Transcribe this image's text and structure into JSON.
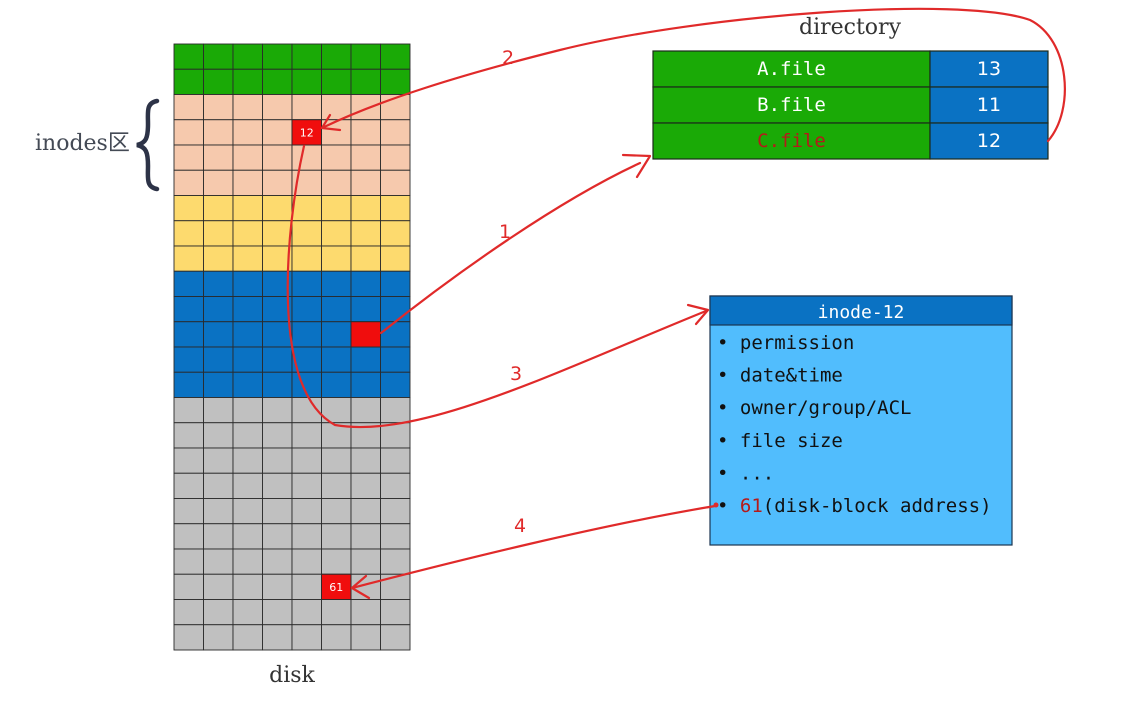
{
  "labels": {
    "inodes_region": "inodes区",
    "disk": "disk",
    "directory": "directory"
  },
  "disk": {
    "rows": 24,
    "cols": 8,
    "regions": [
      {
        "name": "disk-region-top",
        "rows": 2,
        "color": "#1aaa06"
      },
      {
        "name": "disk-region-inodes",
        "rows": 4,
        "color": "#f6c9ad"
      },
      {
        "name": "disk-region-yellow",
        "rows": 3,
        "color": "#fdda6e"
      },
      {
        "name": "disk-region-blue",
        "rows": 5,
        "color": "#0a72c3"
      },
      {
        "name": "disk-region-data",
        "rows": 10,
        "color": "#c0c0c0"
      }
    ],
    "marked_blocks": [
      {
        "name": "inode-block-12",
        "label": "12",
        "row": 3,
        "col": 4
      },
      {
        "name": "directory-block",
        "label": "",
        "row": 11,
        "col": 6
      },
      {
        "name": "data-block-61",
        "label": "61",
        "row": 21,
        "col": 5
      }
    ],
    "marked_color": "#f00d0d"
  },
  "directory": {
    "rows": [
      {
        "name": "A.file",
        "inode": "13",
        "highlight": false
      },
      {
        "name": "B.file",
        "inode": "11",
        "highlight": false
      },
      {
        "name": "C.file",
        "inode": "12",
        "highlight": true
      }
    ],
    "name_color": "#1aaa06",
    "inode_color": "#0a72c3"
  },
  "inode_box": {
    "title": "inode-12",
    "items": [
      "permission",
      "date&time",
      "owner/group/ACL",
      "file size",
      "..."
    ],
    "address_value": "61",
    "address_label": "(disk-block address)"
  },
  "arrows": [
    {
      "name": "arrow-1",
      "label": "1"
    },
    {
      "name": "arrow-2",
      "label": "2"
    },
    {
      "name": "arrow-3",
      "label": "3"
    },
    {
      "name": "arrow-4",
      "label": "4"
    }
  ],
  "colors": {
    "arrow": "#e02a2a",
    "bullet_text": "#111111",
    "inode_fill": "#51bdfd",
    "inode_header": "#0a72c3",
    "red_text": "#b51a1a"
  }
}
